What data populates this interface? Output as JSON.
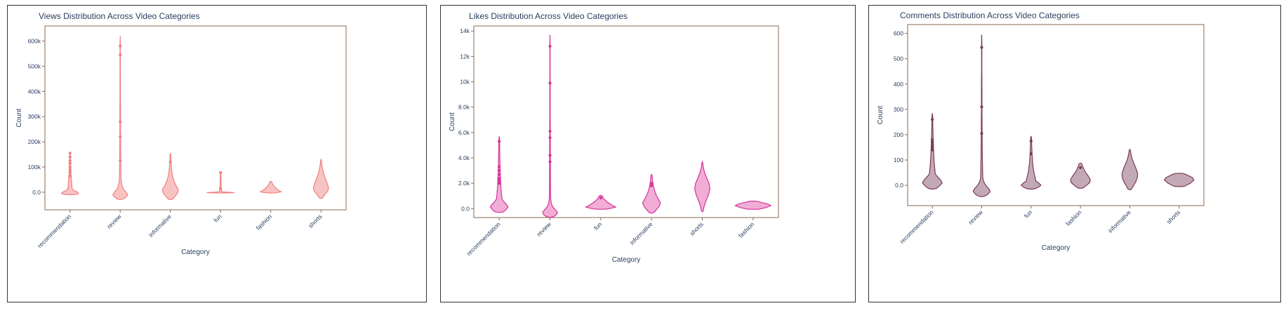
{
  "chart_data": [
    {
      "type": "violin",
      "title": "Views Distribution Across Video Categories",
      "xlabel": "Category",
      "ylabel": "Count",
      "ylim": [
        -70000,
        660000
      ],
      "yticks": [
        0,
        100000,
        200000,
        300000,
        400000,
        500000,
        600000
      ],
      "ytick_labels": [
        "0.0",
        "100k",
        "200k",
        "300k",
        "400k",
        "500k",
        "600k"
      ],
      "color": "#f08080",
      "fill": "#f6b8b8",
      "categories": [
        "recommendation",
        "review",
        "informative",
        "fun",
        "fashion",
        "shorts"
      ],
      "series": [
        {
          "name": "recommendation",
          "min": -10000,
          "max": 160000,
          "width": 0.34,
          "body": 0.15,
          "shape": [
            0.6,
            0.9,
            1,
            0.9,
            0.7,
            0.5,
            0.38,
            0.3,
            0.25,
            0.2,
            0.16,
            0.12,
            0.09,
            0.06,
            0.04,
            0.03,
            0.02
          ],
          "points": [
            155000,
            140000,
            125000,
            115000,
            100000,
            90000,
            80000,
            65000
          ]
        },
        {
          "name": "review",
          "min": -30000,
          "max": 620000,
          "width": 0.3,
          "body": 0.13,
          "shape": [
            0.3,
            0.7,
            1,
            0.85,
            0.55,
            0.35,
            0.25,
            0.18,
            0.13,
            0.1,
            0.08,
            0.06,
            0.05,
            0.04,
            0.04,
            0.03,
            0.03,
            0.02,
            0.02,
            0.02
          ],
          "points": [
            580000,
            545000,
            280000,
            220000,
            125000
          ]
        },
        {
          "name": "informative",
          "min": -30000,
          "max": 155000,
          "width": 0.32,
          "body": 0.3,
          "shape": [
            0.2,
            0.45,
            0.7,
            0.9,
            1,
            0.9,
            0.7,
            0.45,
            0.28,
            0.18,
            0.12,
            0.08,
            0.05,
            0.03
          ],
          "points": [
            120000
          ]
        },
        {
          "name": "fun",
          "min": -3000,
          "max": 82000,
          "width": 0.55,
          "body": 0.07,
          "shape": [
            0.6,
            1,
            0.7,
            0.35,
            0.15,
            0.08,
            0.05,
            0.04,
            0.03,
            0.03,
            0.02,
            0.02
          ],
          "points": [
            78000,
            15000
          ]
        },
        {
          "name": "fashion",
          "min": -3000,
          "max": 43000,
          "width": 0.42,
          "body": 0.16,
          "shape": [
            0.3,
            0.75,
            1,
            0.85,
            0.55,
            0.3,
            0.15,
            0.08
          ],
          "points": []
        },
        {
          "name": "shorts",
          "min": -25000,
          "max": 130000,
          "width": 0.3,
          "body": 0.35,
          "shape": [
            0.15,
            0.4,
            0.7,
            0.95,
            1,
            0.9,
            0.65,
            0.4,
            0.22,
            0.1,
            0.04
          ],
          "points": []
        }
      ]
    },
    {
      "type": "violin",
      "title": "Likes Distribution Across Video Categories",
      "xlabel": "Category",
      "ylabel": "Count",
      "ylim": [
        -700,
        14400
      ],
      "yticks": [
        0,
        2000,
        4000,
        6000,
        8000,
        10000,
        12000,
        14000
      ],
      "ytick_labels": [
        "0.0",
        "2.0k",
        "4.0k",
        "6.0k",
        "8.0k",
        "10k",
        "12k",
        "14k"
      ],
      "color": "#d5349a",
      "fill": "#ee9fcf",
      "categories": [
        "recommendation",
        "review",
        "fun",
        "informative",
        "shorts",
        "fashion"
      ],
      "series": [
        {
          "name": "recommendation",
          "min": -300,
          "max": 5700,
          "width": 0.35,
          "body": 0.18,
          "shape": [
            0.4,
            0.75,
            1,
            0.8,
            0.5,
            0.3,
            0.2,
            0.14,
            0.1,
            0.07,
            0.05,
            0.03
          ],
          "points": [
            5300,
            3300,
            3000,
            2700,
            2400,
            2200,
            2000
          ]
        },
        {
          "name": "review",
          "min": -700,
          "max": 13700,
          "width": 0.3,
          "body": 0.1,
          "shape": [
            0.3,
            0.8,
            1,
            0.7,
            0.4,
            0.22,
            0.14,
            0.09,
            0.06,
            0.05,
            0.04,
            0.03,
            0.03,
            0.02,
            0.02,
            0.02
          ],
          "points": [
            12800,
            9900,
            6100,
            5600,
            4200,
            3700
          ]
        },
        {
          "name": "fun",
          "min": -50,
          "max": 1050,
          "width": 0.6,
          "body": 0.25,
          "shape": [
            0.3,
            0.7,
            1,
            0.8,
            0.45,
            0.2,
            0.08
          ],
          "points": [
            850
          ]
        },
        {
          "name": "informative",
          "min": -350,
          "max": 2700,
          "width": 0.35,
          "body": 0.35,
          "shape": [
            0.2,
            0.55,
            0.85,
            1,
            0.8,
            0.5,
            0.3,
            0.18,
            0.1,
            0.06
          ],
          "points": [
            2000,
            1800
          ]
        },
        {
          "name": "shorts",
          "min": -250,
          "max": 3700,
          "width": 0.3,
          "body": 0.45,
          "shape": [
            0.08,
            0.25,
            0.5,
            0.8,
            1,
            0.9,
            0.6,
            0.3,
            0.12,
            0.04
          ],
          "points": []
        },
        {
          "name": "fashion",
          "min": -50,
          "max": 600,
          "width": 0.7,
          "body": 0.45,
          "shape": [
            0.3,
            0.75,
            1,
            0.85,
            0.5,
            0.15
          ],
          "points": []
        }
      ]
    },
    {
      "type": "violin",
      "title": "Comments Distribution Across Video Categories",
      "xlabel": "Category",
      "ylabel": "Count",
      "ylim": [
        -80,
        635
      ],
      "yticks": [
        0,
        100,
        200,
        300,
        400,
        500,
        600
      ],
      "ytick_labels": [
        "0.0",
        "100",
        "200",
        "300",
        "400",
        "500",
        "600"
      ],
      "color": "#7b3b57",
      "fill": "#b89aa8",
      "categories": [
        "recommendation",
        "review",
        "fun",
        "fashion",
        "informative",
        "shorts"
      ],
      "series": [
        {
          "name": "recommendation",
          "min": -15,
          "max": 285,
          "width": 0.4,
          "body": 0.2,
          "shape": [
            0.3,
            0.7,
            1,
            0.85,
            0.55,
            0.3,
            0.18,
            0.12,
            0.08,
            0.05,
            0.03
          ],
          "points": [
            260,
            180,
            170,
            160,
            150,
            140
          ]
        },
        {
          "name": "review",
          "min": -45,
          "max": 595,
          "width": 0.35,
          "body": 0.12,
          "shape": [
            0.3,
            0.75,
            1,
            0.8,
            0.5,
            0.3,
            0.18,
            0.12,
            0.08,
            0.06,
            0.04,
            0.03,
            0.03,
            0.02,
            0.02,
            0.02
          ],
          "points": [
            545,
            310,
            205
          ]
        },
        {
          "name": "fun",
          "min": -15,
          "max": 195,
          "width": 0.4,
          "body": 0.15,
          "shape": [
            0.3,
            0.75,
            1,
            0.8,
            0.5,
            0.28,
            0.16,
            0.1,
            0.06,
            0.04
          ],
          "points": [
            175,
            125
          ]
        },
        {
          "name": "fashion",
          "min": -12,
          "max": 88,
          "width": 0.4,
          "body": 0.35,
          "shape": [
            0.2,
            0.6,
            0.95,
            1,
            0.75,
            0.45,
            0.25,
            0.12
          ],
          "points": [
            70
          ]
        },
        {
          "name": "informative",
          "min": -18,
          "max": 142,
          "width": 0.32,
          "body": 0.4,
          "shape": [
            0.15,
            0.45,
            0.75,
            0.95,
            1,
            0.8,
            0.55,
            0.3,
            0.15,
            0.06
          ],
          "points": []
        },
        {
          "name": "shorts",
          "min": -5,
          "max": 48,
          "width": 0.6,
          "body": 0.5,
          "shape": [
            0.3,
            0.75,
            1,
            0.9,
            0.6,
            0.25
          ],
          "points": []
        }
      ]
    }
  ]
}
